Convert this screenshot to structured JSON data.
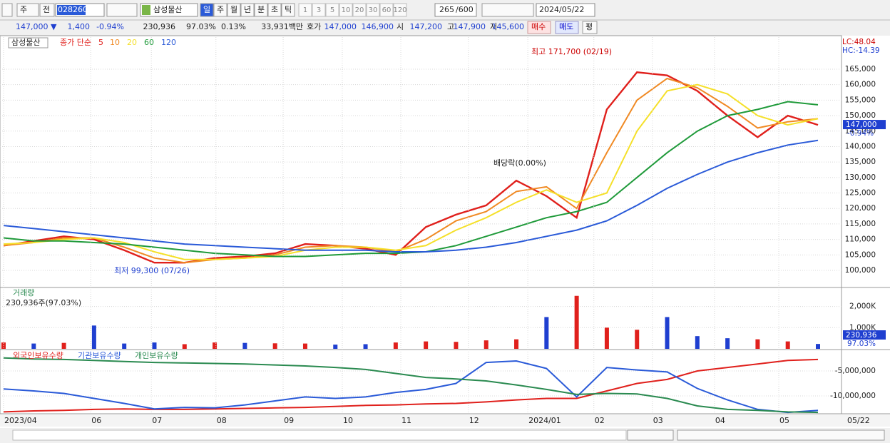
{
  "toolbar": {
    "period_prefix": "주",
    "mode": "전",
    "code": "028260",
    "name": "삼성물산",
    "periods": [
      "일",
      "주",
      "월",
      "년",
      "분",
      "초",
      "틱"
    ],
    "intervals": [
      "1",
      "3",
      "5",
      "10",
      "20",
      "30",
      "60",
      "120"
    ],
    "count": "265",
    "max_count": "/600",
    "date": "2024/05/22"
  },
  "quote": {
    "price": "147,000 ▼",
    "change": "1,400",
    "change_rate": "-0.94%",
    "volume": "230,936",
    "volume_rate": "97.03%",
    "turnover": "0.13%",
    "amount": "33,931백만",
    "bid_label": "호가",
    "ask": "147,000",
    "bid": "146,900",
    "open_label": "시",
    "open": "147,200",
    "high_label": "고",
    "high": "147,900",
    "low_label": "저",
    "low": "145,600",
    "buy": "매수",
    "sell": "매도",
    "avg": "평"
  },
  "chart_data": [
    {
      "type": "line",
      "legend_name": "삼성물산",
      "legend_label": "종가 단순",
      "xlim": [
        0,
        27
      ],
      "ylim": [
        94470,
        175370
      ],
      "yticks": [
        {
          "value": 100000,
          "label": "100,000"
        },
        {
          "value": 105000,
          "label": "105,000"
        },
        {
          "value": 110000,
          "label": "110,000"
        },
        {
          "value": 115000,
          "label": "115,000"
        },
        {
          "value": 120000,
          "label": "120,000"
        },
        {
          "value": 125000,
          "label": "125,000"
        },
        {
          "value": 130000,
          "label": "130,000"
        },
        {
          "value": 135000,
          "label": "135,000"
        },
        {
          "value": 140000,
          "label": "140,000"
        },
        {
          "value": 145000,
          "label": "145,000"
        },
        {
          "value": 150000,
          "label": "150,000"
        },
        {
          "value": 155000,
          "label": "155,000"
        },
        {
          "value": 160000,
          "label": "160,000"
        },
        {
          "value": 165000,
          "label": "165,000"
        }
      ],
      "grid": true,
      "series": [
        {
          "name": "5",
          "color": "#e0201c",
          "values": [
            108000,
            109500,
            111000,
            110000,
            106500,
            102500,
            102500,
            104000,
            104500,
            105500,
            108500,
            108000,
            107000,
            105000,
            114000,
            118000,
            121000,
            129000,
            124000,
            117000,
            152000,
            164000,
            163000,
            158000,
            150000,
            143000,
            150000,
            147000
          ]
        },
        {
          "name": "10",
          "color": "#f08a24",
          "values": [
            108000,
            109000,
            110500,
            110500,
            107500,
            104000,
            102500,
            103500,
            104000,
            105000,
            107500,
            108000,
            107500,
            106000,
            110000,
            116000,
            119000,
            125500,
            127000,
            120000,
            138000,
            155000,
            162000,
            159000,
            153000,
            146000,
            148000,
            149000
          ]
        },
        {
          "name": "20",
          "color": "#f5e02a",
          "values": [
            108500,
            109000,
            110000,
            110500,
            109000,
            106000,
            103500,
            103500,
            104000,
            104500,
            106500,
            107500,
            107500,
            106500,
            108000,
            113000,
            117000,
            122000,
            126000,
            122000,
            125000,
            145000,
            158000,
            160000,
            157000,
            150000,
            147000,
            149000
          ]
        },
        {
          "name": "60",
          "color": "#1f9a3a",
          "values": [
            110500,
            109500,
            109500,
            109000,
            108500,
            107500,
            106500,
            105500,
            105000,
            104500,
            104500,
            105000,
            105500,
            105500,
            106000,
            108000,
            111000,
            114000,
            117000,
            119000,
            122000,
            130000,
            138000,
            145000,
            150000,
            152000,
            154500,
            153500
          ]
        },
        {
          "name": "120",
          "color": "#2a5ad8",
          "values": [
            114500,
            113500,
            112500,
            111500,
            110500,
            109500,
            108500,
            108000,
            107500,
            107000,
            106500,
            106500,
            106500,
            106000,
            106000,
            106500,
            107500,
            109000,
            111000,
            113000,
            116000,
            121000,
            126500,
            131000,
            135000,
            138000,
            140500,
            142000
          ]
        }
      ],
      "annotations": [
        "최고 171,700 (02/19)",
        "최저 99,300 (07/26)",
        "배당락(0.00%)"
      ],
      "lc_label": "LC:48.04",
      "hc_label": "HC:-14.39",
      "last_label": "147,000",
      "change_label": "-0.94%"
    },
    {
      "type": "bar",
      "title": "거래량",
      "subtitle": "230,936주(97.03%)",
      "xlim": [
        0,
        27
      ],
      "ylim": [
        0,
        2828000
      ],
      "yticks": [
        {
          "value": 1000000,
          "label": "1,000K"
        },
        {
          "value": 2000000,
          "label": "2,000K"
        }
      ],
      "values": [
        300000,
        250000,
        280000,
        1100000,
        250000,
        300000,
        220000,
        300000,
        280000,
        260000,
        250000,
        200000,
        220000,
        300000,
        350000,
        330000,
        400000,
        450000,
        1500000,
        2500000,
        1000000,
        900000,
        1500000,
        600000,
        500000,
        450000,
        350000,
        230936
      ],
      "colors": [
        "#e0201c",
        "#1f3fd0",
        "#e0201c",
        "#1f3fd0",
        "#1f3fd0",
        "#1f3fd0",
        "#e0201c",
        "#e0201c",
        "#1f3fd0",
        "#e0201c",
        "#e0201c",
        "#1f3fd0",
        "#1f3fd0",
        "#e0201c",
        "#e0201c",
        "#e0201c",
        "#e0201c",
        "#e0201c",
        "#1f3fd0",
        "#e0201c",
        "#e0201c",
        "#e0201c",
        "#1f3fd0",
        "#1f3fd0",
        "#1f3fd0",
        "#e0201c",
        "#e0201c",
        "#1f3fd0"
      ],
      "last_label": "230,936",
      "rate_label": "97.03%"
    },
    {
      "type": "line",
      "xlim": [
        0,
        27
      ],
      "ylim": [
        -13570000,
        -1000000
      ],
      "yticks": [
        {
          "value": -5000000,
          "label": "-5,000,000"
        },
        {
          "value": -10000000,
          "label": "-10,000,000"
        }
      ],
      "xticks": [
        {
          "value": 0,
          "label": "2023/04"
        },
        {
          "value": 2.89,
          "label": "06"
        },
        {
          "value": 4.9,
          "label": "07"
        },
        {
          "value": 7.04,
          "label": "08"
        },
        {
          "value": 9.27,
          "label": "09"
        },
        {
          "value": 11.23,
          "label": "10"
        },
        {
          "value": 13.17,
          "label": "11"
        },
        {
          "value": 15.41,
          "label": "12"
        },
        {
          "value": 17.38,
          "label": "2024/01"
        },
        {
          "value": 19.57,
          "label": "02"
        },
        {
          "value": 21.51,
          "label": "03"
        },
        {
          "value": 23.57,
          "label": "04"
        },
        {
          "value": 25.7,
          "label": "05"
        }
      ],
      "end_label": "05/22",
      "series": [
        {
          "name": "외국인보유수량",
          "color": "#e0201c",
          "values": [
            -13200000,
            -13000000,
            -12900000,
            -12700000,
            -12600000,
            -12700000,
            -12700000,
            -12600000,
            -12500000,
            -12400000,
            -12300000,
            -12100000,
            -11900000,
            -11800000,
            -11600000,
            -11500000,
            -11200000,
            -10800000,
            -10500000,
            -10500000,
            -9000000,
            -7500000,
            -6700000,
            -5000000,
            -4300000,
            -3600000,
            -2900000,
            -2700000
          ]
        },
        {
          "name": "기관보유수량",
          "color": "#2a5ad8",
          "values": [
            -8600000,
            -9000000,
            -9500000,
            -10500000,
            -11500000,
            -12600000,
            -12300000,
            -12400000,
            -11800000,
            -11000000,
            -10200000,
            -10500000,
            -10200000,
            -9300000,
            -8700000,
            -7500000,
            -3300000,
            -3000000,
            -4500000,
            -10200000,
            -4300000,
            -4800000,
            -5200000,
            -8500000,
            -10800000,
            -12700000,
            -13300000,
            -12900000
          ]
        },
        {
          "name": "개인보유수량",
          "color": "#2a8a50",
          "values": [
            -2400000,
            -2600000,
            -2700000,
            -2900000,
            -3100000,
            -3300000,
            -3400000,
            -3500000,
            -3600000,
            -3800000,
            -4000000,
            -4300000,
            -4700000,
            -5500000,
            -6300000,
            -6600000,
            -7000000,
            -7800000,
            -8700000,
            -9700000,
            -9500000,
            -9600000,
            -10500000,
            -12000000,
            -12700000,
            -12900000,
            -13200000,
            -13300000
          ]
        }
      ]
    }
  ]
}
